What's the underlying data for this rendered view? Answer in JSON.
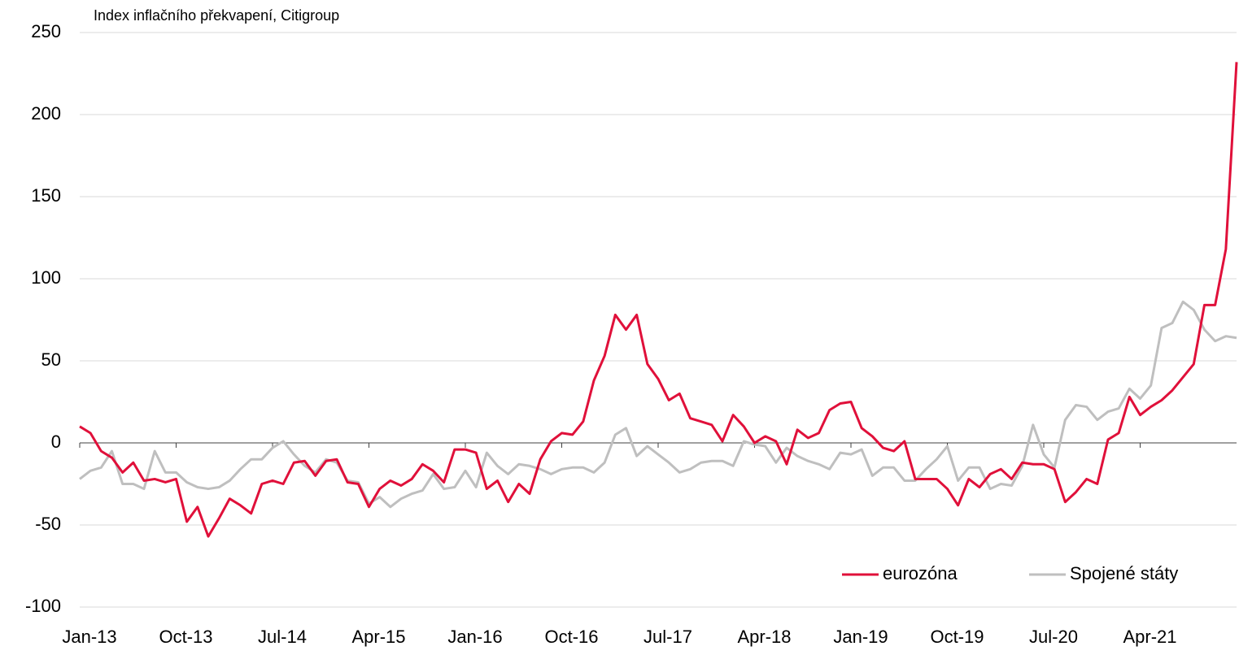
{
  "chart_data": {
    "type": "line",
    "title": "Index inflačního překvapení, Citigroup",
    "categories": [
      "Jan-13",
      null,
      null,
      null,
      null,
      null,
      null,
      null,
      null,
      "Oct-13",
      null,
      null,
      null,
      null,
      null,
      null,
      null,
      null,
      "Jul-14",
      null,
      null,
      null,
      null,
      null,
      null,
      null,
      null,
      "Apr-15",
      null,
      null,
      null,
      null,
      null,
      null,
      null,
      null,
      "Jan-16",
      null,
      null,
      null,
      null,
      null,
      null,
      null,
      null,
      "Oct-16",
      null,
      null,
      null,
      null,
      null,
      null,
      null,
      null,
      "Jul-17",
      null,
      null,
      null,
      null,
      null,
      null,
      null,
      null,
      "Apr-18",
      null,
      null,
      null,
      null,
      null,
      null,
      null,
      null,
      "Jan-19",
      null,
      null,
      null,
      null,
      null,
      null,
      null,
      null,
      "Oct-19",
      null,
      null,
      null,
      null,
      null,
      null,
      null,
      null,
      "Jul-20",
      null,
      null,
      null,
      null,
      null,
      null,
      null,
      null,
      "Apr-21",
      null,
      null,
      null,
      null,
      null,
      null,
      null,
      null,
      null
    ],
    "series": [
      {
        "name": "eurozóna",
        "color": "#e0103a",
        "values": [
          10,
          6,
          -5,
          -9,
          -18,
          -12,
          -23,
          -22,
          -24,
          -22,
          -48,
          -39,
          -57,
          -46,
          -34,
          -38,
          -43,
          -25,
          -23,
          -25,
          -12,
          -11,
          -20,
          -11,
          -10,
          -24,
          -25,
          -39,
          -28,
          -23,
          -26,
          -22,
          -13,
          -17,
          -24,
          -4,
          -4,
          -6,
          -28,
          -23,
          -36,
          -25,
          -31,
          -10,
          1,
          6,
          5,
          13,
          38,
          53,
          78,
          69,
          78,
          48,
          39,
          26,
          30,
          15,
          13,
          11,
          1,
          17,
          10,
          0,
          4,
          1,
          -13,
          8,
          3,
          6,
          20,
          24,
          25,
          9,
          4,
          -3,
          -5,
          1,
          -22,
          -22,
          -22,
          -28,
          -38,
          -22,
          -27,
          -19,
          -16,
          -22,
          -12,
          -13,
          -13,
          -16,
          -36,
          -30,
          -22,
          -25,
          2,
          6,
          28,
          17,
          22,
          26,
          32,
          40,
          48,
          84,
          84,
          118,
          232
        ]
      },
      {
        "name": "Spojené státy",
        "color": "#bfbfbf",
        "values": [
          -22,
          -17,
          -15,
          -5,
          -25,
          -25,
          -28,
          -5,
          -18,
          -18,
          -24,
          -27,
          -28,
          -27,
          -23,
          -16,
          -10,
          -10,
          -3,
          1,
          -7,
          -14,
          -18,
          -10,
          -12,
          -23,
          -24,
          -37,
          -33,
          -39,
          -34,
          -31,
          -29,
          -19,
          -28,
          -27,
          -17,
          -27,
          -6,
          -14,
          -19,
          -13,
          -14,
          -16,
          -19,
          -16,
          -15,
          -15,
          -18,
          -12,
          5,
          9,
          -8,
          -2,
          -7,
          -12,
          -18,
          -16,
          -12,
          -11,
          -11,
          -14,
          1,
          -1,
          -2,
          -12,
          -3,
          -8,
          -11,
          -13,
          -16,
          -6,
          -7,
          -4,
          -20,
          -15,
          -15,
          -23,
          -23,
          -16,
          -10,
          -2,
          -23,
          -15,
          -15,
          -28,
          -25,
          -26,
          -14,
          11,
          -7,
          -15,
          14,
          23,
          22,
          14,
          19,
          21,
          33,
          27,
          35,
          70,
          73,
          86,
          81,
          69,
          62,
          65,
          64
        ]
      }
    ],
    "ylim": [
      -100,
      250
    ],
    "yticks": [
      -100,
      -50,
      0,
      50,
      100,
      150,
      200,
      250
    ],
    "grid": true,
    "legend": "bottom-right"
  }
}
